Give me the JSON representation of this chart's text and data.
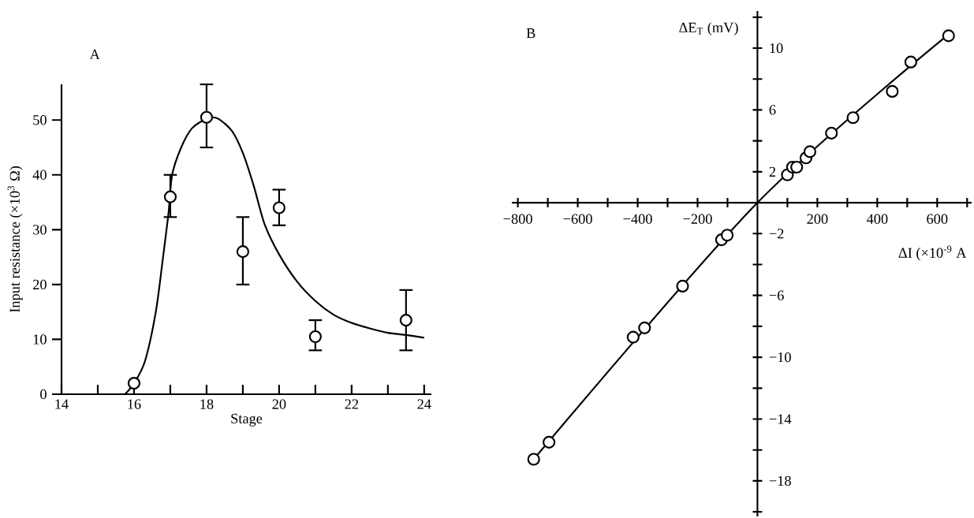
{
  "chart_data": [
    {
      "type": "scatter",
      "title": "A",
      "xlabel": "Stage",
      "ylabel": "Input resistance (×10$^{3}$ Ω)",
      "xlim": [
        14,
        24.2
      ],
      "ylim": [
        0,
        56.5
      ],
      "xticks": [
        14,
        {
          "value": 15,
          "label": null
        },
        16,
        {
          "value": 17,
          "label": null
        },
        18,
        {
          "value": 19,
          "label": null
        },
        20,
        {
          "value": 21,
          "label": null
        },
        22,
        {
          "value": 23,
          "label": null
        },
        24
      ],
      "yticks": [
        0,
        10,
        20,
        30,
        40,
        50
      ],
      "series": [
        {
          "marker": "circle",
          "color": "#000000",
          "x": [
            16,
            17,
            18,
            19,
            20,
            21,
            23.5
          ],
          "values": [
            2,
            36,
            50.5,
            26,
            34,
            10.5,
            13.5
          ],
          "errors": [
            null,
            [
              32.3,
              40
            ],
            [
              45,
              56.5
            ],
            [
              20,
              32.3
            ],
            [
              30.8,
              37.3
            ],
            [
              8,
              13.5
            ],
            [
              8,
              19
            ]
          ]
        },
        {
          "type": "line",
          "color": "#000000",
          "x": [
            15.75,
            16,
            16.3,
            16.6,
            16.8,
            16.95,
            17.05,
            17.3,
            17.6,
            18,
            18.3,
            18.7,
            19,
            19.3,
            19.6,
            20,
            20.5,
            21,
            21.5,
            22,
            22.5,
            23,
            23.5,
            24
          ],
          "values": [
            0,
            2,
            6,
            15,
            25,
            33,
            40,
            45,
            48.5,
            50.2,
            50.3,
            48,
            44,
            38,
            31,
            25.5,
            20.5,
            17,
            14.5,
            13,
            12,
            11.2,
            10.8,
            10.3
          ]
        }
      ]
    },
    {
      "type": "scatter",
      "title": "B",
      "xlabel": "ΔI (×10$^{-9}$ A",
      "ylabel": "ΔE$_{T}$ (mV)",
      "xlim": [
        -820,
        715
      ],
      "ylim": [
        -20.3,
        12.4
      ],
      "xticks": [
        {
          "value": -800,
          "label": "−800"
        },
        {
          "value": -700,
          "label": null
        },
        {
          "value": -600,
          "label": "−600"
        },
        {
          "value": -500,
          "label": null
        },
        {
          "value": -400,
          "label": "−400"
        },
        {
          "value": -300,
          "label": null
        },
        {
          "value": -200,
          "label": "−200"
        },
        {
          "value": -100,
          "label": null
        },
        {
          "value": 0,
          "label": null
        },
        {
          "value": 100,
          "label": null
        },
        200,
        {
          "value": 300,
          "label": null
        },
        400,
        {
          "value": 500,
          "label": null
        },
        600,
        {
          "value": 700,
          "label": null
        }
      ],
      "yticks": [
        {
          "value": -20,
          "label": null
        },
        {
          "value": -18,
          "label": "−18"
        },
        {
          "value": -16,
          "label": null
        },
        {
          "value": -14,
          "label": "−14"
        },
        {
          "value": -12,
          "label": null
        },
        {
          "value": -10,
          "label": "−10"
        },
        {
          "value": -8,
          "label": null
        },
        {
          "value": -6,
          "label": "−6"
        },
        {
          "value": -4,
          "label": null
        },
        {
          "value": -2,
          "label": "−2"
        },
        {
          "value": 0,
          "label": null
        },
        2,
        {
          "value": 4,
          "label": null
        },
        6,
        {
          "value": 8,
          "label": null
        },
        10,
        {
          "value": 12,
          "label": null
        }
      ],
      "series": [
        {
          "marker": "circle",
          "color": "#000000",
          "x": [
            -747,
            -696,
            -415,
            -377,
            -250,
            -120,
            -101,
            100,
            117,
            131,
            162,
            175,
            247,
            319,
            450,
            512,
            638
          ],
          "values": [
            -16.6,
            -15.5,
            -8.7,
            -8.1,
            -5.4,
            -2.4,
            -2.1,
            1.8,
            2.3,
            2.3,
            2.9,
            3.3,
            4.5,
            5.5,
            7.2,
            9.1,
            10.8
          ]
        },
        {
          "type": "line",
          "color": "#000000",
          "x": [
            -760,
            0,
            645
          ],
          "values": [
            -16.9,
            0,
            11
          ]
        }
      ]
    }
  ]
}
